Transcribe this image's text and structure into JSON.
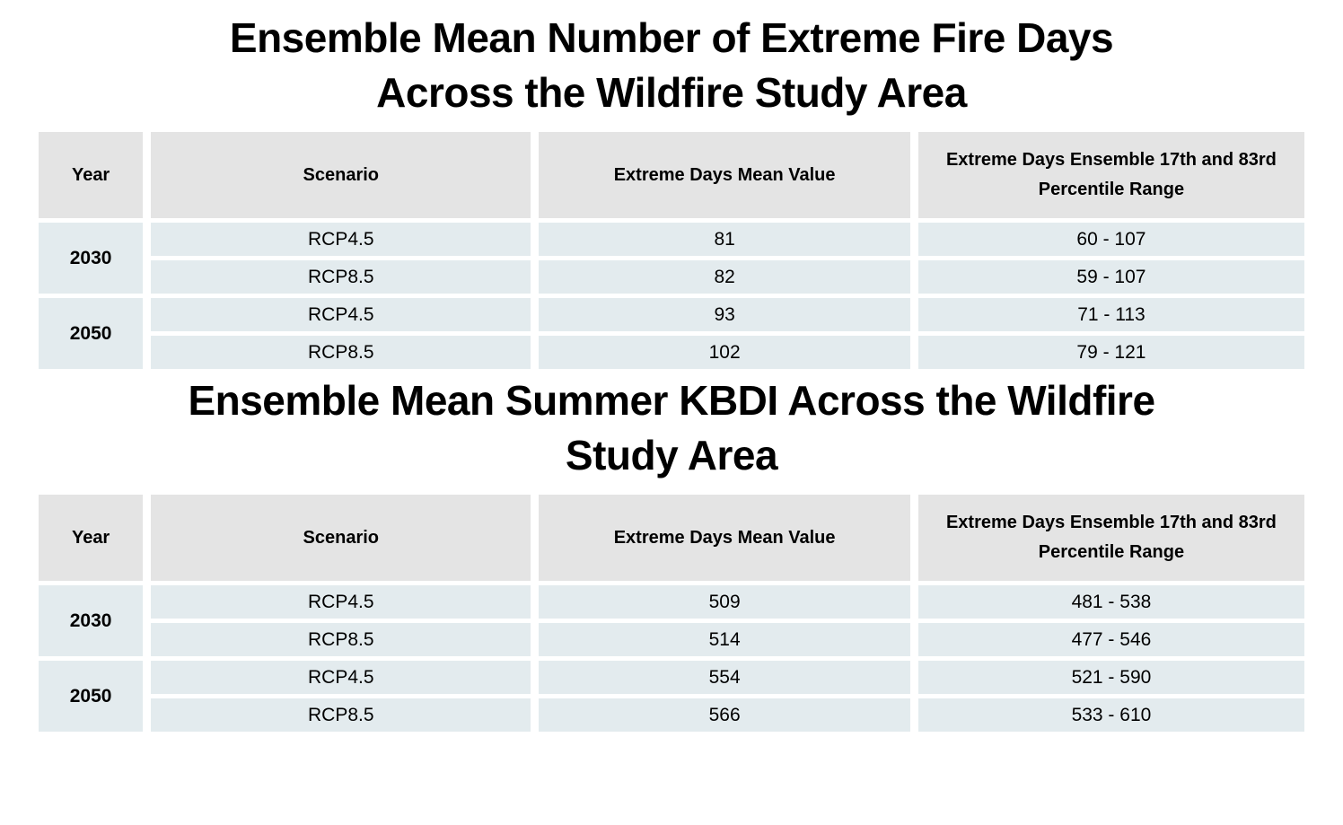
{
  "colors": {
    "page_bg": "#ffffff",
    "header_cell_bg": "#e4e4e4",
    "data_cell_bg": "#e3ebee",
    "text": "#000000"
  },
  "chart_data": [
    {
      "type": "table",
      "title": "Ensemble Mean Number of Extreme Fire Days Across the Wildfire Study Area",
      "title_lines": [
        "Ensemble Mean Number of Extreme Fire Days",
        "Across the Wildfire Study Area"
      ],
      "columns": [
        "Year",
        "Scenario",
        "Extreme Days Mean Value",
        "Extreme Days Ensemble 17th and 83rd Percentile Range"
      ],
      "groups": [
        {
          "year": "2030",
          "rows": [
            {
              "scenario": "RCP4.5",
              "mean": "81",
              "range": "60 - 107"
            },
            {
              "scenario": "RCP8.5",
              "mean": "82",
              "range": "59 - 107"
            }
          ]
        },
        {
          "year": "2050",
          "rows": [
            {
              "scenario": "RCP4.5",
              "mean": "93",
              "range": "71 - 113"
            },
            {
              "scenario": "RCP8.5",
              "mean": "102",
              "range": "79 - 121"
            }
          ]
        }
      ]
    },
    {
      "type": "table",
      "title": "Ensemble Mean Summer KBDI Across the Wildfire Study Area",
      "title_lines": [
        "Ensemble Mean Summer KBDI Across the Wildfire",
        "Study Area"
      ],
      "columns": [
        "Year",
        "Scenario",
        "Extreme Days Mean Value",
        "Extreme Days Ensemble 17th and 83rd Percentile Range"
      ],
      "groups": [
        {
          "year": "2030",
          "rows": [
            {
              "scenario": "RCP4.5",
              "mean": "509",
              "range": "481 - 538"
            },
            {
              "scenario": "RCP8.5",
              "mean": "514",
              "range": "477 - 546"
            }
          ]
        },
        {
          "year": "2050",
          "rows": [
            {
              "scenario": "RCP4.5",
              "mean": "554",
              "range": "521 - 590"
            },
            {
              "scenario": "RCP8.5",
              "mean": "566",
              "range": "533 - 610"
            }
          ]
        }
      ]
    }
  ]
}
